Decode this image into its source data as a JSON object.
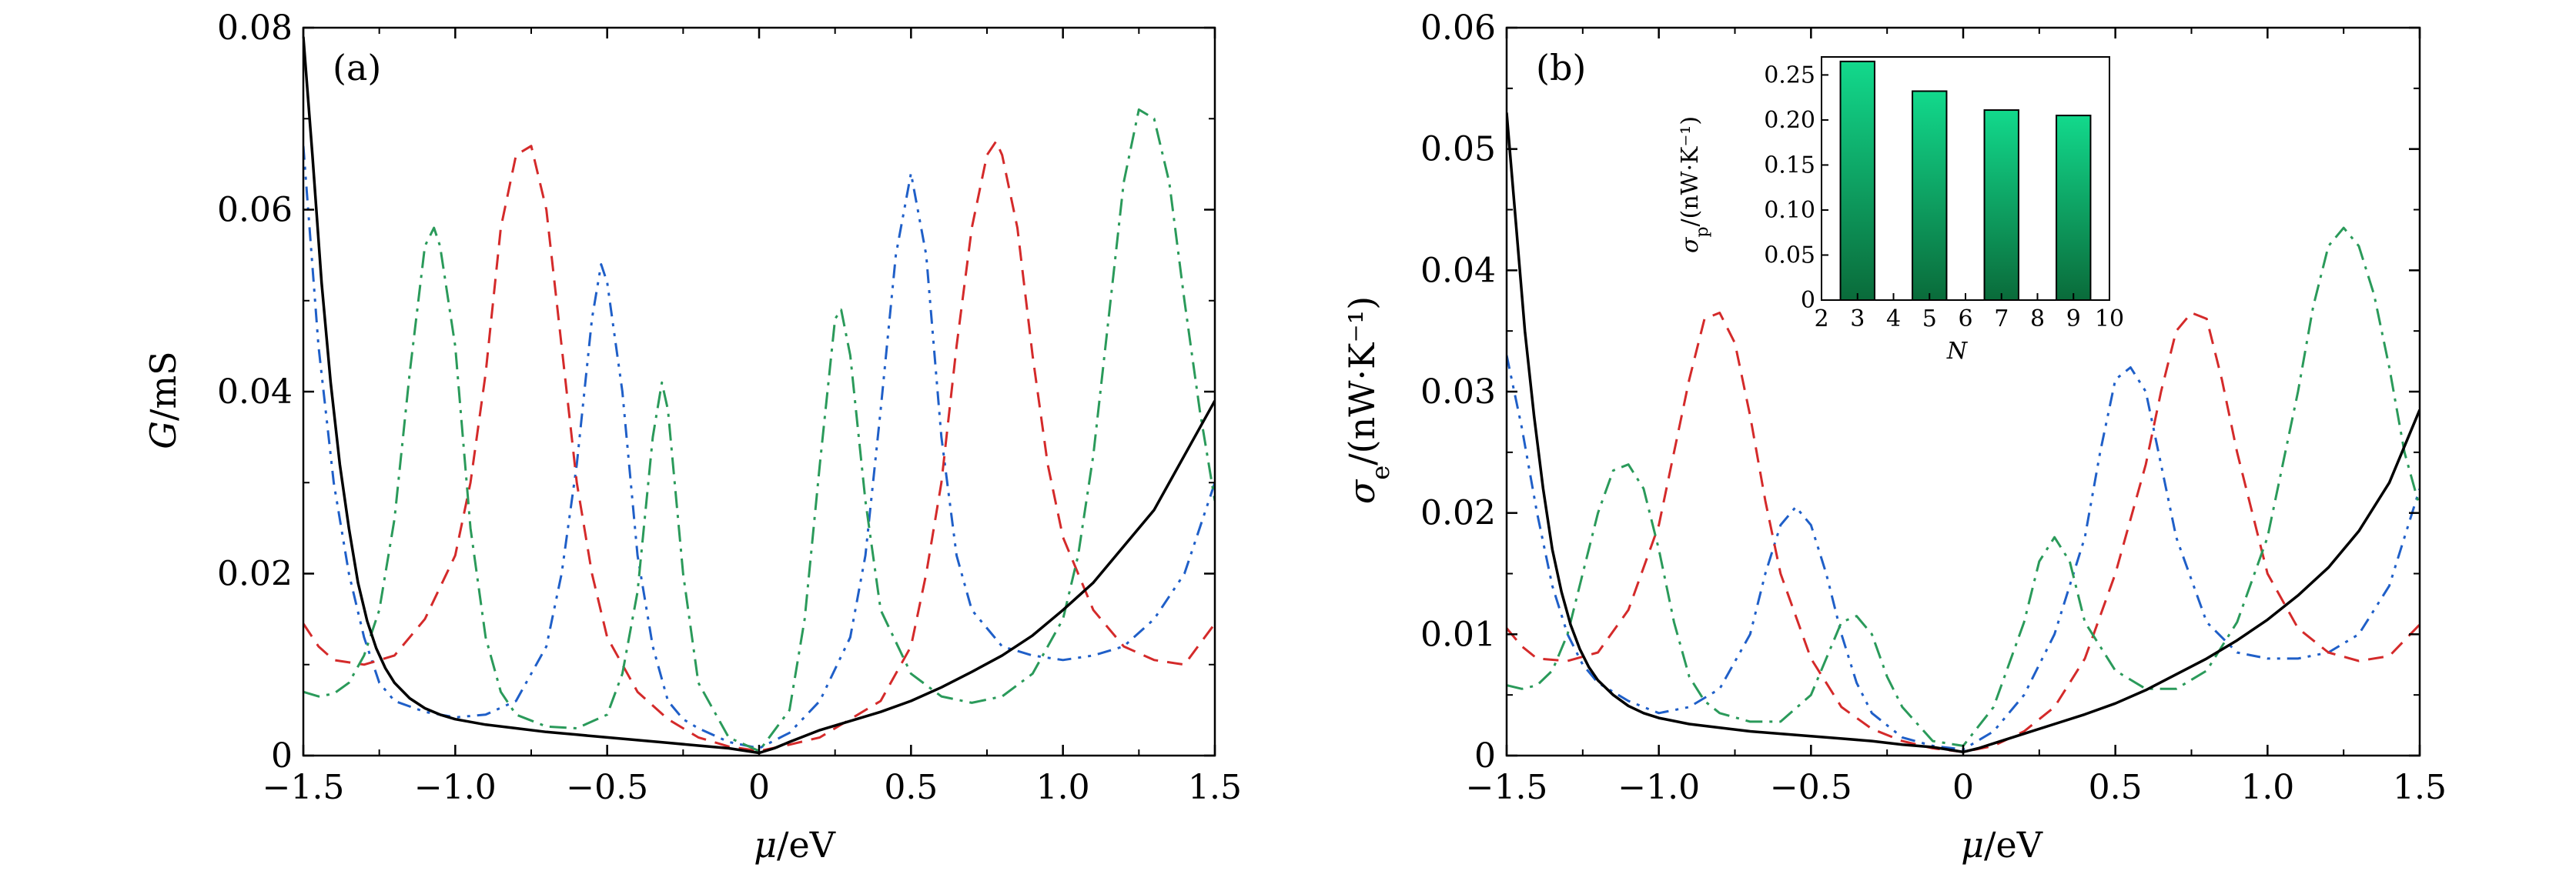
{
  "chart_data": [
    {
      "type": "line",
      "panel_label": "(a)",
      "xlabel_symbol": "μ",
      "xlabel_unit": "/eV",
      "ylabel_symbol": "G",
      "ylabel_unit": "/mS",
      "xlim": [
        -1.5,
        1.5
      ],
      "ylim": [
        0,
        0.08
      ],
      "x_ticks": [
        -1.5,
        -1.0,
        -0.5,
        0,
        0.5,
        1.0,
        1.5
      ],
      "x_tick_labels": [
        "−1.5",
        "−1.0",
        "−0.5",
        "0",
        "0.5",
        "1.0",
        "1.5"
      ],
      "y_ticks": [
        0,
        0.02,
        0.04,
        0.06,
        0.08
      ],
      "y_tick_labels": [
        "0",
        "0.02",
        "0.04",
        "0.06",
        "0.08"
      ],
      "grid": false,
      "series": [
        {
          "color": "#1f5fc8",
          "dash": "18,9,4,9,4,9",
          "width": 3,
          "x": [
            -1.5,
            -1.45,
            -1.4,
            -1.35,
            -1.3,
            -1.25,
            -1.2,
            -1.1,
            -1.0,
            -0.9,
            -0.8,
            -0.7,
            -0.65,
            -0.6,
            -0.55,
            -0.52,
            -0.5,
            -0.45,
            -0.4,
            -0.35,
            -0.3,
            -0.25,
            -0.2,
            -0.1,
            0.0,
            0.1,
            0.2,
            0.3,
            0.35,
            0.4,
            0.45,
            0.5,
            0.55,
            0.6,
            0.65,
            0.7,
            0.8,
            0.9,
            1.0,
            1.1,
            1.2,
            1.3,
            1.4,
            1.5
          ],
          "y": [
            0.067,
            0.045,
            0.03,
            0.02,
            0.013,
            0.008,
            0.006,
            0.0048,
            0.0042,
            0.0045,
            0.006,
            0.012,
            0.02,
            0.032,
            0.048,
            0.054,
            0.052,
            0.04,
            0.022,
            0.012,
            0.006,
            0.004,
            0.003,
            0.0015,
            0.0008,
            0.0025,
            0.006,
            0.013,
            0.022,
            0.038,
            0.055,
            0.064,
            0.055,
            0.035,
            0.022,
            0.016,
            0.012,
            0.011,
            0.0105,
            0.011,
            0.012,
            0.015,
            0.02,
            0.03
          ]
        },
        {
          "color": "#d42a2a",
          "dash": "20,12",
          "width": 3,
          "x": [
            -1.5,
            -1.45,
            -1.4,
            -1.3,
            -1.2,
            -1.1,
            -1.0,
            -0.95,
            -0.9,
            -0.85,
            -0.8,
            -0.75,
            -0.7,
            -0.65,
            -0.6,
            -0.55,
            -0.5,
            -0.4,
            -0.3,
            -0.2,
            -0.1,
            0.0,
            0.1,
            0.2,
            0.3,
            0.4,
            0.5,
            0.55,
            0.6,
            0.65,
            0.7,
            0.75,
            0.78,
            0.8,
            0.85,
            0.9,
            0.95,
            1.0,
            1.1,
            1.2,
            1.3,
            1.4,
            1.5
          ],
          "y": [
            0.0145,
            0.012,
            0.0105,
            0.01,
            0.011,
            0.015,
            0.022,
            0.03,
            0.042,
            0.058,
            0.066,
            0.067,
            0.06,
            0.045,
            0.03,
            0.02,
            0.013,
            0.007,
            0.004,
            0.002,
            0.001,
            0.0005,
            0.0012,
            0.002,
            0.004,
            0.006,
            0.012,
            0.02,
            0.03,
            0.045,
            0.058,
            0.066,
            0.0675,
            0.066,
            0.058,
            0.044,
            0.032,
            0.024,
            0.016,
            0.012,
            0.0105,
            0.01,
            0.0145
          ]
        },
        {
          "color": "#2a9a5a",
          "dash": "22,9,4,9",
          "width": 3,
          "x": [
            -1.5,
            -1.45,
            -1.4,
            -1.35,
            -1.3,
            -1.25,
            -1.2,
            -1.15,
            -1.1,
            -1.07,
            -1.05,
            -1.0,
            -0.95,
            -0.9,
            -0.85,
            -0.8,
            -0.7,
            -0.6,
            -0.5,
            -0.45,
            -0.4,
            -0.35,
            -0.32,
            -0.3,
            -0.25,
            -0.2,
            -0.1,
            0.0,
            0.1,
            0.15,
            0.2,
            0.25,
            0.27,
            0.3,
            0.35,
            0.4,
            0.5,
            0.6,
            0.7,
            0.8,
            0.9,
            1.0,
            1.05,
            1.1,
            1.15,
            1.2,
            1.25,
            1.3,
            1.35,
            1.4,
            1.45,
            1.5
          ],
          "y": [
            0.007,
            0.0065,
            0.0068,
            0.008,
            0.011,
            0.016,
            0.026,
            0.042,
            0.056,
            0.058,
            0.056,
            0.045,
            0.025,
            0.013,
            0.007,
            0.0045,
            0.0032,
            0.003,
            0.0045,
            0.009,
            0.018,
            0.035,
            0.041,
            0.038,
            0.02,
            0.008,
            0.002,
            0.0005,
            0.005,
            0.015,
            0.032,
            0.048,
            0.049,
            0.044,
            0.028,
            0.016,
            0.009,
            0.0065,
            0.0058,
            0.0065,
            0.009,
            0.015,
            0.022,
            0.033,
            0.048,
            0.063,
            0.071,
            0.07,
            0.063,
            0.05,
            0.038,
            0.028
          ]
        },
        {
          "color": "#000000",
          "dash": "",
          "width": 3.5,
          "x": [
            -1.5,
            -1.47,
            -1.44,
            -1.41,
            -1.38,
            -1.35,
            -1.32,
            -1.29,
            -1.26,
            -1.23,
            -1.2,
            -1.15,
            -1.1,
            -1.05,
            -1.0,
            -0.9,
            -0.8,
            -0.7,
            -0.6,
            -0.5,
            -0.4,
            -0.3,
            -0.2,
            -0.1,
            0.0,
            0.05,
            0.1,
            0.2,
            0.3,
            0.4,
            0.5,
            0.6,
            0.7,
            0.8,
            0.9,
            1.0,
            1.1,
            1.2,
            1.3,
            1.4,
            1.5
          ],
          "y": [
            0.079,
            0.066,
            0.052,
            0.041,
            0.032,
            0.025,
            0.019,
            0.0148,
            0.0118,
            0.0096,
            0.008,
            0.0063,
            0.0052,
            0.0045,
            0.004,
            0.0034,
            0.003,
            0.0026,
            0.0023,
            0.002,
            0.0017,
            0.0014,
            0.0011,
            0.0008,
            0.0003,
            0.0008,
            0.0015,
            0.0028,
            0.0038,
            0.0048,
            0.006,
            0.0075,
            0.0092,
            0.011,
            0.0132,
            0.016,
            0.019,
            0.023,
            0.027,
            0.033,
            0.039
          ]
        }
      ]
    },
    {
      "type": "line",
      "panel_label": "(b)",
      "xlabel_symbol": "μ",
      "xlabel_unit": "/eV",
      "ylabel_symbol": "σ",
      "ylabel_sub": "e",
      "ylabel_unit": "/(nW·K⁻¹)",
      "xlim": [
        -1.5,
        1.5
      ],
      "ylim": [
        0,
        0.06
      ],
      "x_ticks": [
        -1.5,
        -1.0,
        -0.5,
        0,
        0.5,
        1.0,
        1.5
      ],
      "x_tick_labels": [
        "−1.5",
        "−1.0",
        "−0.5",
        "0",
        "0.5",
        "1.0",
        "1.5"
      ],
      "y_ticks": [
        0,
        0.01,
        0.02,
        0.03,
        0.04,
        0.05,
        0.06
      ],
      "y_tick_labels": [
        "0",
        "0.01",
        "0.02",
        "0.03",
        "0.04",
        "0.05",
        "0.06"
      ],
      "grid": false,
      "series": [
        {
          "color": "#1f5fc8",
          "dash": "18,9,4,9,4,9",
          "width": 3,
          "x": [
            -1.5,
            -1.45,
            -1.4,
            -1.35,
            -1.3,
            -1.25,
            -1.2,
            -1.1,
            -1.0,
            -0.9,
            -0.8,
            -0.7,
            -0.65,
            -0.6,
            -0.55,
            -0.5,
            -0.45,
            -0.4,
            -0.35,
            -0.3,
            -0.2,
            -0.1,
            0.0,
            0.1,
            0.2,
            0.3,
            0.4,
            0.45,
            0.5,
            0.55,
            0.6,
            0.65,
            0.7,
            0.8,
            0.9,
            1.0,
            1.1,
            1.2,
            1.3,
            1.4,
            1.5
          ],
          "y": [
            0.033,
            0.027,
            0.02,
            0.014,
            0.01,
            0.0075,
            0.006,
            0.0045,
            0.0035,
            0.004,
            0.0055,
            0.01,
            0.015,
            0.019,
            0.0205,
            0.019,
            0.015,
            0.01,
            0.006,
            0.0035,
            0.0015,
            0.0008,
            0.0005,
            0.002,
            0.005,
            0.01,
            0.018,
            0.025,
            0.031,
            0.032,
            0.03,
            0.024,
            0.018,
            0.011,
            0.0085,
            0.008,
            0.008,
            0.0085,
            0.01,
            0.014,
            0.022
          ]
        },
        {
          "color": "#d42a2a",
          "dash": "20,12",
          "width": 3,
          "x": [
            -1.5,
            -1.45,
            -1.4,
            -1.3,
            -1.2,
            -1.1,
            -1.0,
            -0.95,
            -0.9,
            -0.85,
            -0.8,
            -0.75,
            -0.7,
            -0.65,
            -0.6,
            -0.5,
            -0.4,
            -0.3,
            -0.2,
            -0.1,
            0.0,
            0.1,
            0.2,
            0.3,
            0.4,
            0.5,
            0.6,
            0.65,
            0.7,
            0.75,
            0.8,
            0.85,
            0.9,
            1.0,
            1.1,
            1.2,
            1.3,
            1.4,
            1.5
          ],
          "y": [
            0.0105,
            0.009,
            0.008,
            0.0078,
            0.0085,
            0.012,
            0.019,
            0.025,
            0.031,
            0.036,
            0.0365,
            0.034,
            0.028,
            0.021,
            0.015,
            0.008,
            0.004,
            0.0022,
            0.0012,
            0.0006,
            0.0003,
            0.0008,
            0.002,
            0.004,
            0.008,
            0.015,
            0.024,
            0.03,
            0.035,
            0.0365,
            0.036,
            0.031,
            0.025,
            0.015,
            0.0105,
            0.0085,
            0.0078,
            0.0082,
            0.0108
          ]
        },
        {
          "color": "#2a9a5a",
          "dash": "22,9,4,9",
          "width": 3,
          "x": [
            -1.5,
            -1.45,
            -1.4,
            -1.35,
            -1.3,
            -1.25,
            -1.2,
            -1.15,
            -1.1,
            -1.05,
            -1.0,
            -0.95,
            -0.9,
            -0.85,
            -0.8,
            -0.7,
            -0.6,
            -0.5,
            -0.45,
            -0.4,
            -0.35,
            -0.3,
            -0.25,
            -0.2,
            -0.1,
            0.0,
            0.1,
            0.2,
            0.25,
            0.3,
            0.35,
            0.4,
            0.5,
            0.6,
            0.7,
            0.8,
            0.9,
            1.0,
            1.05,
            1.1,
            1.15,
            1.2,
            1.25,
            1.3,
            1.35,
            1.4,
            1.45,
            1.5
          ],
          "y": [
            0.0058,
            0.0055,
            0.0058,
            0.007,
            0.01,
            0.015,
            0.02,
            0.0235,
            0.024,
            0.022,
            0.017,
            0.011,
            0.0065,
            0.0045,
            0.0035,
            0.0028,
            0.0028,
            0.005,
            0.008,
            0.011,
            0.0115,
            0.01,
            0.0065,
            0.004,
            0.0012,
            0.0008,
            0.004,
            0.011,
            0.016,
            0.018,
            0.016,
            0.011,
            0.007,
            0.0055,
            0.0055,
            0.007,
            0.011,
            0.018,
            0.024,
            0.03,
            0.037,
            0.042,
            0.0435,
            0.042,
            0.038,
            0.032,
            0.025,
            0.0205
          ]
        },
        {
          "color": "#000000",
          "dash": "",
          "width": 3.5,
          "x": [
            -1.5,
            -1.47,
            -1.44,
            -1.41,
            -1.38,
            -1.35,
            -1.32,
            -1.29,
            -1.26,
            -1.23,
            -1.2,
            -1.15,
            -1.1,
            -1.05,
            -1.0,
            -0.9,
            -0.8,
            -0.7,
            -0.6,
            -0.5,
            -0.4,
            -0.3,
            -0.2,
            -0.1,
            0.0,
            0.05,
            0.1,
            0.2,
            0.3,
            0.4,
            0.5,
            0.6,
            0.7,
            0.8,
            0.9,
            1.0,
            1.1,
            1.2,
            1.3,
            1.4,
            1.5
          ],
          "y": [
            0.053,
            0.044,
            0.035,
            0.028,
            0.022,
            0.017,
            0.0135,
            0.0108,
            0.0088,
            0.0073,
            0.0062,
            0.005,
            0.0041,
            0.0035,
            0.0031,
            0.0026,
            0.0023,
            0.002,
            0.0018,
            0.0016,
            0.0014,
            0.0012,
            0.0009,
            0.0007,
            0.0003,
            0.0006,
            0.001,
            0.0018,
            0.0026,
            0.0034,
            0.0043,
            0.0054,
            0.0067,
            0.008,
            0.0095,
            0.0112,
            0.0132,
            0.0155,
            0.0185,
            0.0225,
            0.0285
          ]
        }
      ]
    },
    {
      "type": "bar",
      "inset_of": "(b)",
      "xlabel": "N",
      "ylabel_symbol": "σ",
      "ylabel_sub": "p",
      "ylabel_unit": "/(nW·K⁻¹)",
      "categories": [
        3,
        5,
        7,
        9
      ],
      "values": [
        0.265,
        0.232,
        0.211,
        0.205
      ],
      "xlim": [
        2,
        10
      ],
      "ylim": [
        0,
        0.27
      ],
      "x_ticks": [
        2,
        3,
        4,
        5,
        6,
        7,
        8,
        9,
        10
      ],
      "x_tick_labels": [
        "2",
        "3",
        "4",
        "5",
        "6",
        "7",
        "8",
        "9",
        "10"
      ],
      "y_ticks": [
        0,
        0.05,
        0.1,
        0.15,
        0.2,
        0.25
      ],
      "y_tick_labels": [
        "0",
        "0.05",
        "0.10",
        "0.15",
        "0.20",
        "0.25"
      ],
      "bar_color_top": "#12d98c",
      "bar_color_bottom": "#0a6b3a"
    }
  ]
}
